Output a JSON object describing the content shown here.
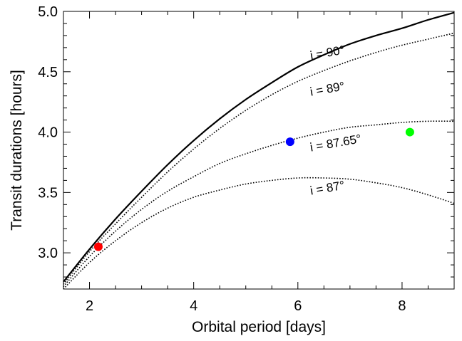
{
  "chart_data": {
    "type": "line",
    "title": "",
    "xlabel": "Orbital period [days]",
    "ylabel": "Transit durations [hours]",
    "xlim": [
      1.5,
      9.0
    ],
    "ylim": [
      2.7,
      5.0
    ],
    "x_ticks": [
      2,
      4,
      6,
      8
    ],
    "x_tick_labels": [
      "2",
      "4",
      "6",
      "8"
    ],
    "y_ticks": [
      3.0,
      3.5,
      4.0,
      4.5,
      5.0
    ],
    "y_tick_labels": [
      "3.0",
      "3.5",
      "4.0",
      "4.5",
      "5.0"
    ],
    "grid": false,
    "legend": "none",
    "series": [
      {
        "style": "solid",
        "color": "#000000",
        "x": [
          1.5,
          2.0,
          2.5,
          3.0,
          3.5,
          4.0,
          4.5,
          5.0,
          5.5,
          6.0,
          6.5,
          7.0,
          7.5,
          8.0,
          8.5,
          9.0
        ],
        "y": [
          2.76,
          3.03,
          3.28,
          3.51,
          3.73,
          3.93,
          4.11,
          4.27,
          4.41,
          4.54,
          4.64,
          4.73,
          4.8,
          4.86,
          4.93,
          4.99
        ]
      },
      {
        "style": "dotted",
        "color": "#000000",
        "x": [
          1.5,
          2.0,
          2.5,
          3.0,
          3.5,
          4.0,
          4.5,
          5.0,
          5.5,
          6.0,
          6.5,
          7.0,
          7.5,
          8.0,
          8.5,
          9.0
        ],
        "y": [
          2.74,
          3.01,
          3.24,
          3.46,
          3.67,
          3.86,
          4.03,
          4.18,
          4.31,
          4.42,
          4.51,
          4.59,
          4.66,
          4.72,
          4.77,
          4.82
        ]
      },
      {
        "style": "dotted",
        "color": "#000000",
        "x": [
          1.5,
          2.0,
          2.5,
          3.0,
          3.5,
          4.0,
          4.5,
          5.0,
          5.5,
          6.0,
          6.5,
          7.0,
          7.5,
          8.0,
          8.5,
          9.0
        ],
        "y": [
          2.72,
          2.97,
          3.18,
          3.36,
          3.51,
          3.63,
          3.74,
          3.82,
          3.89,
          3.95,
          4.0,
          4.04,
          4.06,
          4.08,
          4.09,
          4.09
        ]
      },
      {
        "style": "dotted",
        "color": "#000000",
        "x": [
          1.5,
          2.0,
          2.5,
          3.0,
          3.5,
          4.0,
          4.5,
          5.0,
          5.5,
          6.0,
          6.5,
          7.0,
          7.5,
          8.0,
          8.5,
          9.0
        ],
        "y": [
          2.7,
          2.92,
          3.1,
          3.25,
          3.37,
          3.46,
          3.52,
          3.57,
          3.6,
          3.62,
          3.62,
          3.61,
          3.58,
          3.54,
          3.48,
          3.41
        ]
      }
    ],
    "points": [
      {
        "x": 2.17,
        "y": 3.05,
        "color": "#ff0000",
        "yerr": 0
      },
      {
        "x": 5.85,
        "y": 3.92,
        "color": "#0000ff",
        "yerr": 0
      },
      {
        "x": 8.15,
        "y": 4.0,
        "color": "#00ff00",
        "yerr": 0.03
      }
    ],
    "annotations": [
      {
        "text": "i = 90°",
        "x": 6.25,
        "y": 4.6
      },
      {
        "text": "i = 89°",
        "x": 6.25,
        "y": 4.3
      },
      {
        "text": "i = 87.65°",
        "x": 6.25,
        "y": 3.84
      },
      {
        "text": "i = 87°",
        "x": 6.25,
        "y": 3.48
      }
    ]
  }
}
